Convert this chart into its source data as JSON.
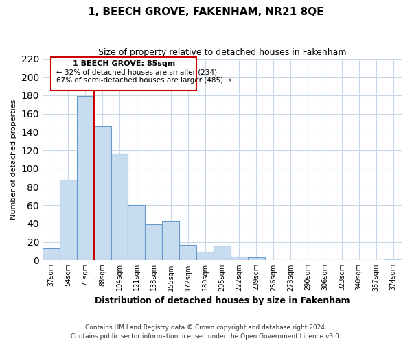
{
  "title": "1, BEECH GROVE, FAKENHAM, NR21 8QE",
  "subtitle": "Size of property relative to detached houses in Fakenham",
  "xlabel": "Distribution of detached houses by size in Fakenham",
  "ylabel": "Number of detached properties",
  "bar_labels": [
    "37sqm",
    "54sqm",
    "71sqm",
    "88sqm",
    "104sqm",
    "121sqm",
    "138sqm",
    "155sqm",
    "172sqm",
    "189sqm",
    "205sqm",
    "222sqm",
    "239sqm",
    "256sqm",
    "273sqm",
    "290sqm",
    "306sqm",
    "323sqm",
    "340sqm",
    "357sqm",
    "374sqm"
  ],
  "bar_values": [
    13,
    88,
    179,
    146,
    116,
    60,
    39,
    43,
    17,
    9,
    16,
    4,
    3,
    0,
    0,
    0,
    0,
    0,
    0,
    0,
    2
  ],
  "bar_color": "#c8dcf0",
  "bar_edge_color": "#6699cc",
  "property_line_x": 3,
  "annotation_title": "1 BEECH GROVE: 85sqm",
  "annotation_line1": "← 32% of detached houses are smaller (234)",
  "annotation_line2": "67% of semi-detached houses are larger (485) →",
  "vline_color": "#cc0000",
  "ylim": [
    0,
    220
  ],
  "yticks": [
    0,
    20,
    40,
    60,
    80,
    100,
    120,
    140,
    160,
    180,
    200,
    220
  ],
  "footer_line1": "Contains HM Land Registry data © Crown copyright and database right 2024.",
  "footer_line2": "Contains public sector information licensed under the Open Government Licence v3.0.",
  "background_color": "#ffffff",
  "grid_color": "#c8d8e8"
}
